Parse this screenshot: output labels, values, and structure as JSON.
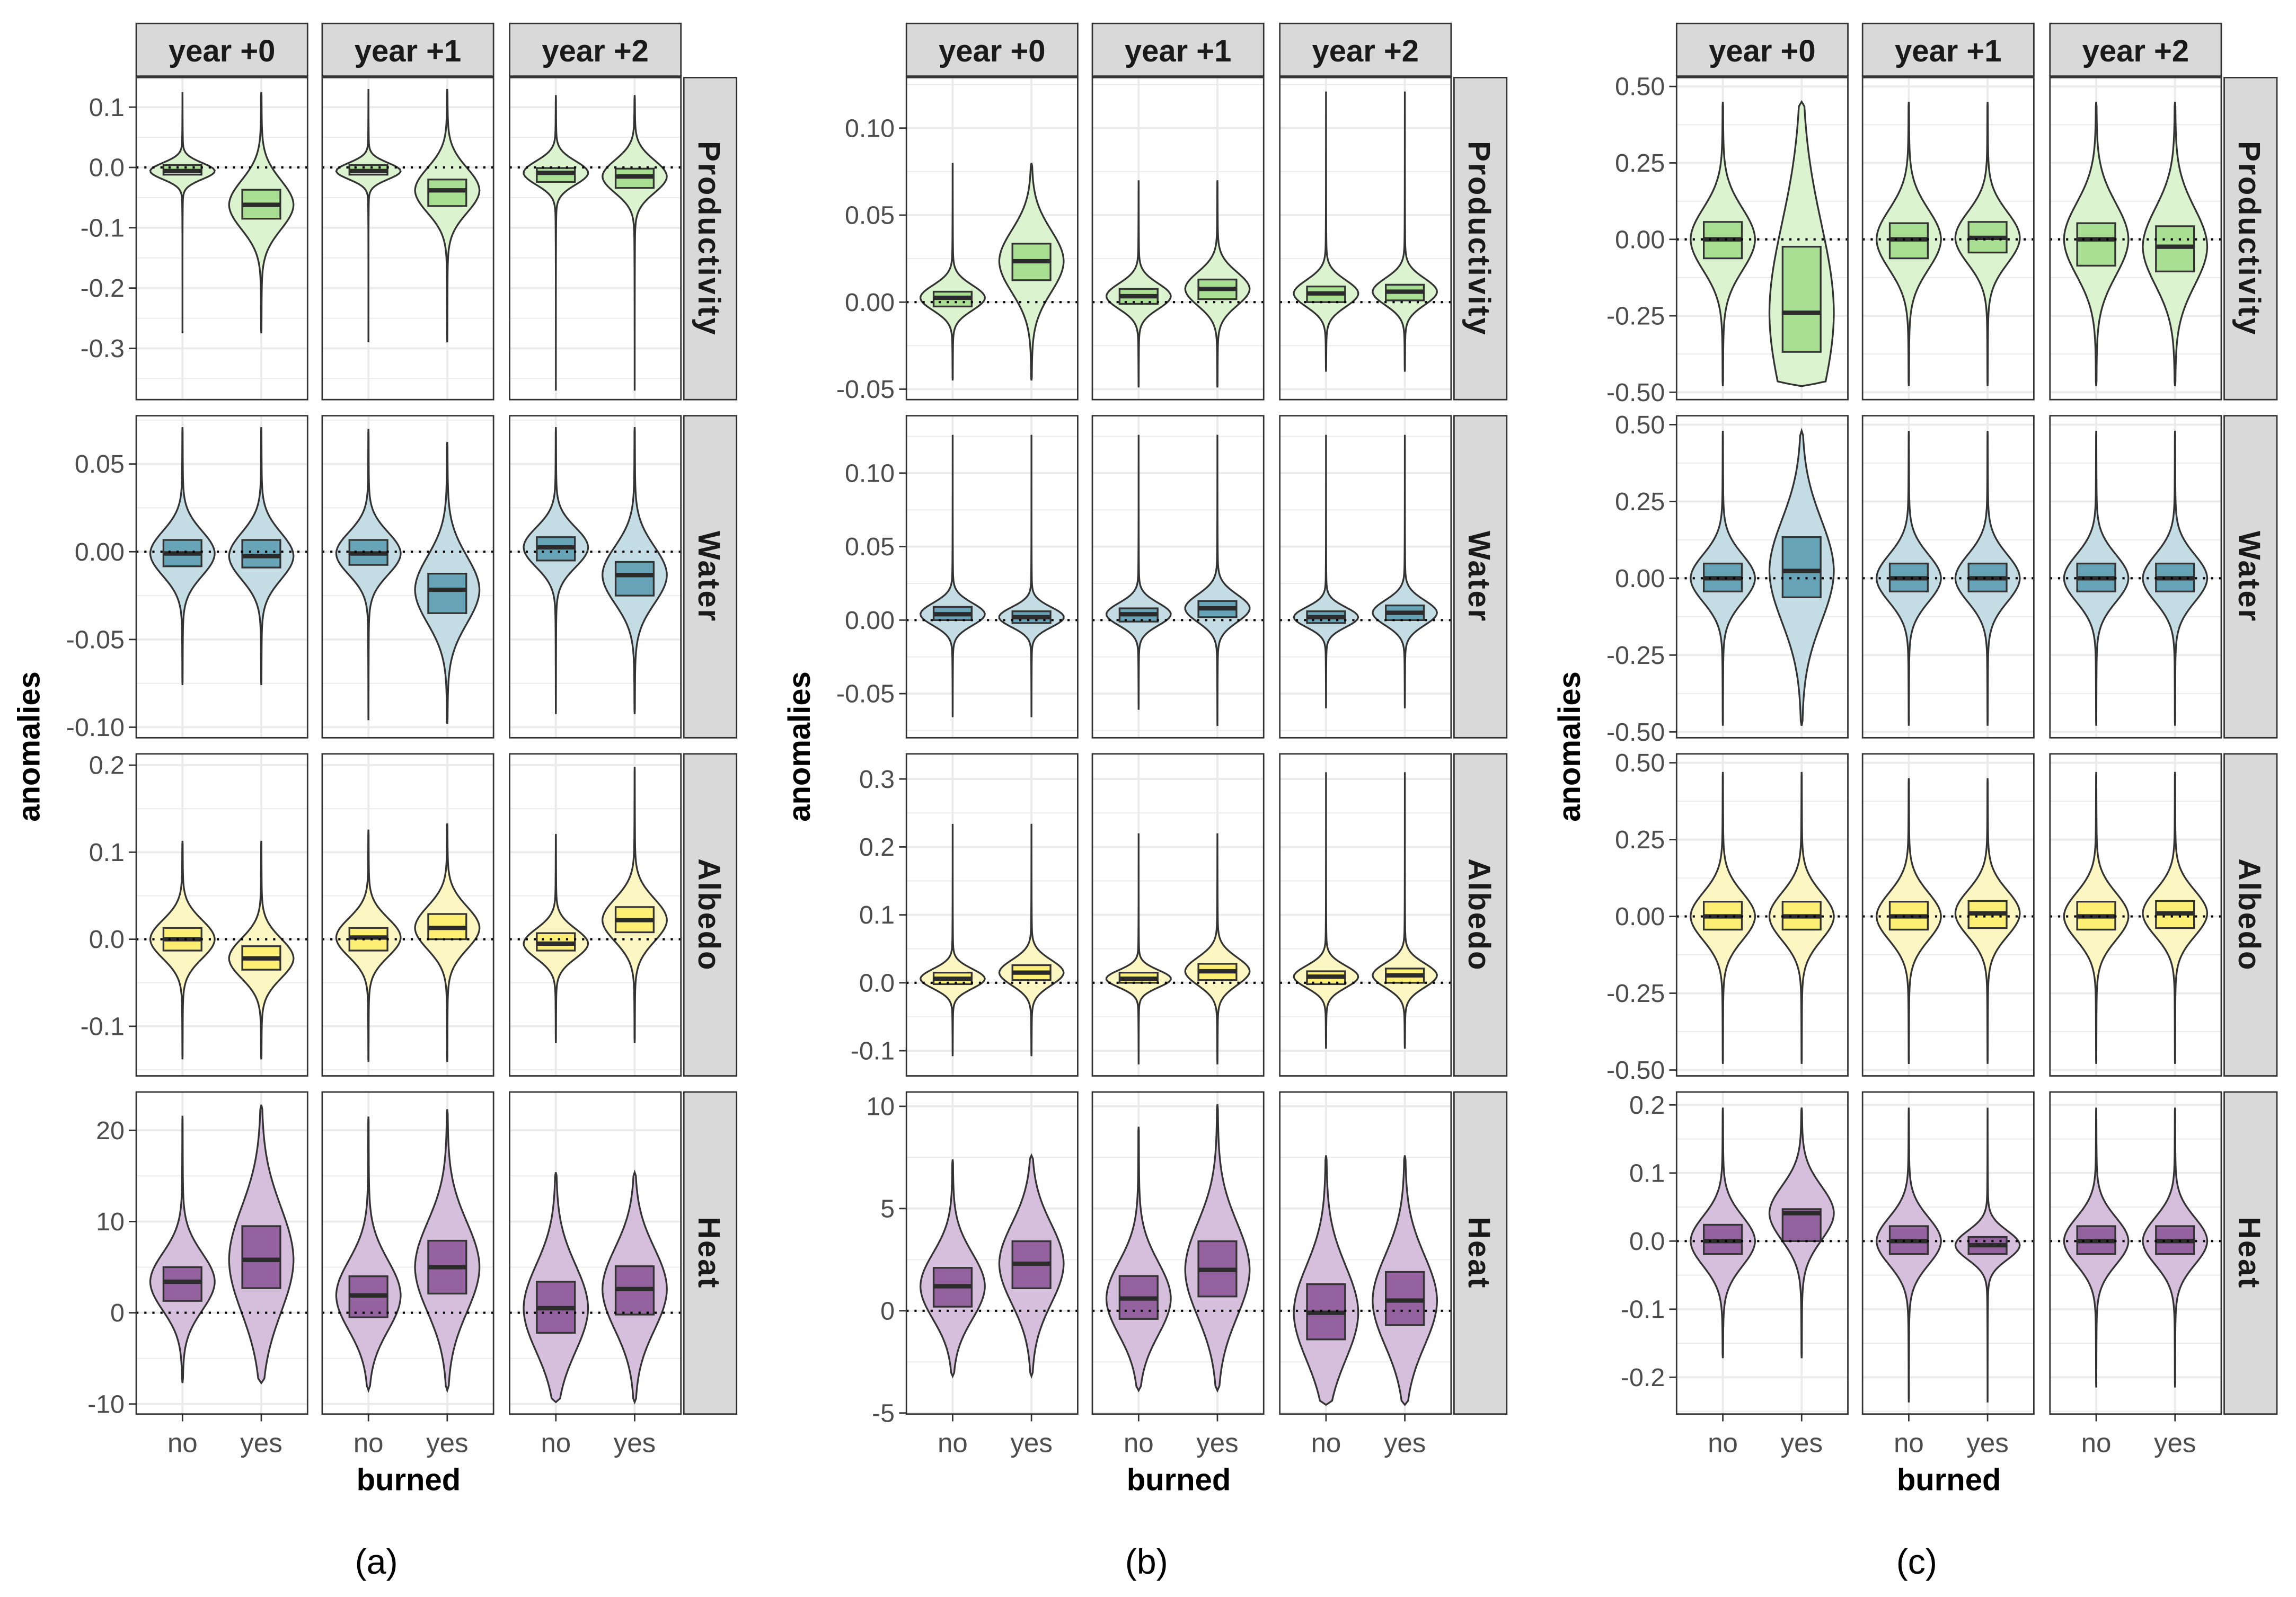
{
  "chart_data": [
    {
      "type": "violin",
      "label": "(a)",
      "xlabel": "burned",
      "ylabel": "anomalies",
      "columns": [
        "year +0",
        "year +1",
        "year +2"
      ],
      "categories": [
        "no",
        "yes"
      ],
      "violin_format": [
        "min",
        "q1",
        "median",
        "q3",
        "max"
      ],
      "rows": [
        {
          "name": "Productivity",
          "ylim": [
            -0.385,
            0.149
          ],
          "ticks": [
            0.1,
            0.0,
            -0.1,
            -0.2,
            -0.3
          ],
          "tick_labels": [
            "0.1",
            "0.0",
            "-0.1",
            "-0.2",
            "-0.3"
          ],
          "violins": [
            [
              [
                -0.275,
                -0.012,
                -0.006,
                0.004,
                0.125
              ],
              [
                -0.275,
                -0.085,
                -0.062,
                -0.037,
                0.125
              ]
            ],
            [
              [
                -0.29,
                -0.012,
                -0.006,
                0.004,
                0.13
              ],
              [
                -0.29,
                -0.064,
                -0.038,
                -0.02,
                0.13
              ]
            ],
            [
              [
                -0.37,
                -0.024,
                -0.009,
                -0.001,
                0.12
              ],
              [
                -0.37,
                -0.034,
                -0.015,
                -0.002,
                0.12
              ]
            ]
          ]
        },
        {
          "name": "Water",
          "ylim": [
            -0.106,
            0.0775
          ],
          "ticks": [
            0.05,
            0.0,
            -0.05,
            -0.1
          ],
          "tick_labels": [
            "0.05",
            "0.00",
            "-0.05",
            "-0.10"
          ],
          "violins": [
            [
              [
                -0.076,
                -0.0083,
                -0.001,
                0.0067,
                0.071
              ],
              [
                -0.076,
                -0.009,
                -0.0025,
                0.0067,
                0.071
              ]
            ],
            [
              [
                -0.096,
                -0.0075,
                -0.001,
                0.0067,
                0.07
              ],
              [
                -0.098,
                -0.035,
                -0.0217,
                -0.0125,
                0.0625
              ]
            ],
            [
              [
                -0.0925,
                -0.005,
                0.0025,
                0.0083,
                0.071
              ],
              [
                -0.0925,
                -0.025,
                -0.0133,
                -0.0058,
                0.071
              ]
            ]
          ]
        },
        {
          "name": "Albedo",
          "ylim": [
            -0.157,
            0.213
          ],
          "ticks": [
            0.2,
            0.1,
            0.0,
            -0.1
          ],
          "tick_labels": [
            "0.2",
            "0.1",
            "0.0",
            "-0.1"
          ],
          "violins": [
            [
              [
                -0.138,
                -0.013,
                0.0,
                0.013,
                0.113
              ],
              [
                -0.138,
                -0.035,
                -0.022,
                -0.008,
                0.113
              ]
            ],
            [
              [
                -0.141,
                -0.013,
                0.002,
                0.013,
                0.126
              ],
              [
                -0.141,
                0.0,
                0.013,
                0.029,
                0.133
              ]
            ],
            [
              [
                -0.119,
                -0.013,
                -0.005,
                0.007,
                0.121
              ],
              [
                -0.119,
                0.008,
                0.022,
                0.037,
                0.198
              ]
            ]
          ]
        },
        {
          "name": "Heat",
          "ylim": [
            -11.1,
            24.2
          ],
          "ticks": [
            20,
            10,
            0,
            -10
          ],
          "tick_labels": [
            "20",
            "10",
            "0",
            "-10"
          ],
          "violins": [
            [
              [
                -7.7,
                1.3,
                3.4,
                5.0,
                21.6
              ],
              [
                -7.7,
                2.7,
                5.8,
                9.5,
                22.8
              ]
            ],
            [
              [
                -8.5,
                -0.5,
                1.9,
                4.0,
                21.5
              ],
              [
                -8.5,
                2.1,
                5.0,
                7.9,
                22.3
              ]
            ],
            [
              [
                -9.8,
                -2.2,
                0.5,
                3.4,
                15.4
              ],
              [
                -9.8,
                -0.2,
                2.6,
                5.1,
                15.4
              ]
            ]
          ]
        }
      ]
    },
    {
      "type": "violin",
      "label": "(b)",
      "xlabel": "burned",
      "ylabel": "anomalies",
      "columns": [
        "year +0",
        "year +1",
        "year +2"
      ],
      "categories": [
        "no",
        "yes"
      ],
      "violin_format": [
        "min",
        "q1",
        "median",
        "q3",
        "max"
      ],
      "rows": [
        {
          "name": "Productivity",
          "ylim": [
            -0.056,
            0.129
          ],
          "ticks": [
            0.1,
            0.05,
            0.0,
            -0.05
          ],
          "tick_labels": [
            "0.10",
            "0.05",
            "0.00",
            "-0.05"
          ],
          "violins": [
            [
              [
                -0.045,
                -0.0025,
                0.0025,
                0.006,
                0.08
              ],
              [
                -0.045,
                0.0126,
                0.0235,
                0.0336,
                0.08
              ]
            ],
            [
              [
                -0.049,
                -0.001,
                0.0034,
                0.0076,
                0.07
              ],
              [
                -0.049,
                0.0017,
                0.0076,
                0.013,
                0.07
              ]
            ],
            [
              [
                -0.04,
                0.0,
                0.005,
                0.009,
                0.121
              ],
              [
                -0.04,
                0.001,
                0.006,
                0.01,
                0.121
              ]
            ]
          ]
        },
        {
          "name": "Water",
          "ylim": [
            -0.08,
            0.139
          ],
          "ticks": [
            0.1,
            0.05,
            0.0,
            -0.05
          ],
          "tick_labels": [
            "0.10",
            "0.05",
            "0.00",
            "-0.05"
          ],
          "violins": [
            [
              [
                -0.066,
                0.0,
                0.004,
                0.009,
                0.126
              ],
              [
                -0.066,
                -0.002,
                0.002,
                0.006,
                0.126
              ]
            ],
            [
              [
                -0.061,
                -0.001,
                0.004,
                0.008,
                0.126
              ],
              [
                -0.072,
                0.002,
                0.008,
                0.013,
                0.126
              ]
            ],
            [
              [
                -0.06,
                -0.002,
                0.002,
                0.006,
                0.126
              ],
              [
                -0.06,
                0.0,
                0.005,
                0.01,
                0.126
              ]
            ]
          ]
        },
        {
          "name": "Albedo",
          "ylim": [
            -0.137,
            0.337
          ],
          "ticks": [
            0.3,
            0.2,
            0.1,
            0.0,
            -0.1
          ],
          "tick_labels": [
            "0.3",
            "0.2",
            "0.1",
            "0.0",
            "-0.1"
          ],
          "violins": [
            [
              [
                -0.108,
                -0.002,
                0.006,
                0.015,
                0.234
              ],
              [
                -0.108,
                0.004,
                0.015,
                0.026,
                0.234
              ]
            ],
            [
              [
                -0.12,
                0.0,
                0.006,
                0.015,
                0.22
              ],
              [
                -0.12,
                0.004,
                0.017,
                0.028,
                0.22
              ]
            ],
            [
              [
                -0.097,
                -0.002,
                0.009,
                0.017,
                0.31
              ],
              [
                -0.097,
                0.0,
                0.011,
                0.021,
                0.31
              ]
            ]
          ]
        },
        {
          "name": "Heat",
          "ylim": [
            -5.05,
            10.7
          ],
          "ticks": [
            10,
            5,
            0,
            -5
          ],
          "tick_labels": [
            "10",
            "5",
            "0",
            "-5"
          ],
          "violins": [
            [
              [
                -3.2,
                0.2,
                1.2,
                2.1,
                7.4
              ],
              [
                -3.2,
                1.1,
                2.3,
                3.4,
                7.6
              ]
            ],
            [
              [
                -3.9,
                -0.4,
                0.6,
                1.7,
                9.0
              ],
              [
                -3.9,
                0.7,
                2.0,
                3.4,
                10.1
              ]
            ],
            [
              [
                -4.6,
                -1.4,
                -0.1,
                1.3,
                7.6
              ],
              [
                -4.6,
                -0.7,
                0.5,
                1.9,
                7.6
              ]
            ]
          ]
        }
      ]
    },
    {
      "type": "violin",
      "label": "(c)",
      "xlabel": "burned",
      "ylabel": "anomalies",
      "columns": [
        "year +0",
        "year +1",
        "year +2"
      ],
      "categories": [
        "no",
        "yes"
      ],
      "violin_format": [
        "min",
        "q1",
        "median",
        "q3",
        "max"
      ],
      "rows": [
        {
          "name": "Productivity",
          "ylim": [
            -0.524,
            0.529
          ],
          "ticks": [
            0.5,
            0.25,
            0.0,
            -0.25,
            -0.5
          ],
          "tick_labels": [
            "0.50",
            "0.25",
            "0.00",
            "-0.25",
            "-0.50"
          ],
          "violins": [
            [
              [
                -0.48,
                -0.062,
                0.0,
                0.057,
                0.45
              ],
              [
                -0.48,
                -0.368,
                -0.24,
                -0.024,
                0.45
              ]
            ],
            [
              [
                -0.48,
                -0.062,
                0.0,
                0.053,
                0.45
              ],
              [
                -0.48,
                -0.043,
                0.005,
                0.057,
                0.45
              ]
            ],
            [
              [
                -0.48,
                -0.086,
                0.0,
                0.053,
                0.45
              ],
              [
                -0.48,
                -0.105,
                -0.024,
                0.043,
                0.45
              ]
            ]
          ]
        },
        {
          "name": "Water",
          "ylim": [
            -0.519,
            0.529
          ],
          "ticks": [
            0.5,
            0.25,
            0.0,
            -0.25,
            -0.5
          ],
          "tick_labels": [
            "0.50",
            "0.25",
            "0.00",
            "-0.25",
            "-0.50"
          ],
          "violins": [
            [
              [
                -0.48,
                -0.043,
                0.0,
                0.048,
                0.48
              ],
              [
                -0.48,
                -0.062,
                0.024,
                0.134,
                0.48
              ]
            ],
            [
              [
                -0.48,
                -0.043,
                0.0,
                0.048,
                0.48
              ],
              [
                -0.48,
                -0.043,
                0.0,
                0.048,
                0.48
              ]
            ],
            [
              [
                -0.48,
                -0.043,
                0.0,
                0.048,
                0.48
              ],
              [
                -0.48,
                -0.043,
                0.0,
                0.048,
                0.48
              ]
            ]
          ]
        },
        {
          "name": "Albedo",
          "ylim": [
            -0.519,
            0.529
          ],
          "ticks": [
            0.5,
            0.25,
            0.0,
            -0.25,
            -0.5
          ],
          "tick_labels": [
            "0.50",
            "0.25",
            "0.00",
            "-0.25",
            "-0.50"
          ],
          "violins": [
            [
              [
                -0.48,
                -0.043,
                0.0,
                0.048,
                0.47
              ],
              [
                -0.48,
                -0.043,
                0.0,
                0.048,
                0.47
              ]
            ],
            [
              [
                -0.48,
                -0.043,
                0.0,
                0.048,
                0.45
              ],
              [
                -0.48,
                -0.038,
                0.01,
                0.05,
                0.45
              ]
            ],
            [
              [
                -0.48,
                -0.043,
                0.0,
                0.048,
                0.47
              ],
              [
                -0.48,
                -0.038,
                0.01,
                0.05,
                0.47
              ]
            ]
          ]
        },
        {
          "name": "Heat",
          "ylim": [
            -0.254,
            0.219
          ],
          "ticks": [
            0.2,
            0.1,
            0.0,
            -0.1,
            -0.2
          ],
          "tick_labels": [
            "0.2",
            "0.1",
            "0.0",
            "-0.1",
            "-0.2"
          ],
          "violins": [
            [
              [
                -0.172,
                -0.019,
                0.0,
                0.024,
                0.196
              ],
              [
                -0.172,
                0.0,
                0.041,
                0.047,
                0.196
              ]
            ],
            [
              [
                -0.237,
                -0.019,
                0.0,
                0.022,
                0.196
              ],
              [
                -0.237,
                -0.019,
                -0.006,
                0.006,
                0.196
              ]
            ],
            [
              [
                -0.215,
                -0.019,
                0.0,
                0.022,
                0.196
              ],
              [
                -0.215,
                -0.019,
                0.0,
                0.022,
                0.196
              ]
            ]
          ]
        }
      ]
    }
  ],
  "colors": {
    "Productivity": {
      "violin": "#dcf3d0",
      "box": "#a3dd8c"
    },
    "Water": {
      "violin": "#c4dce4",
      "box": "#5e9db3"
    },
    "Albedo": {
      "violin": "#fcf6c2",
      "box": "#fcee6c"
    },
    "Heat": {
      "violin": "#d6bfdc",
      "box": "#8c5898"
    },
    "strip": "#d9d9d9",
    "grid": "#ebebeb",
    "frame": "#333333"
  }
}
